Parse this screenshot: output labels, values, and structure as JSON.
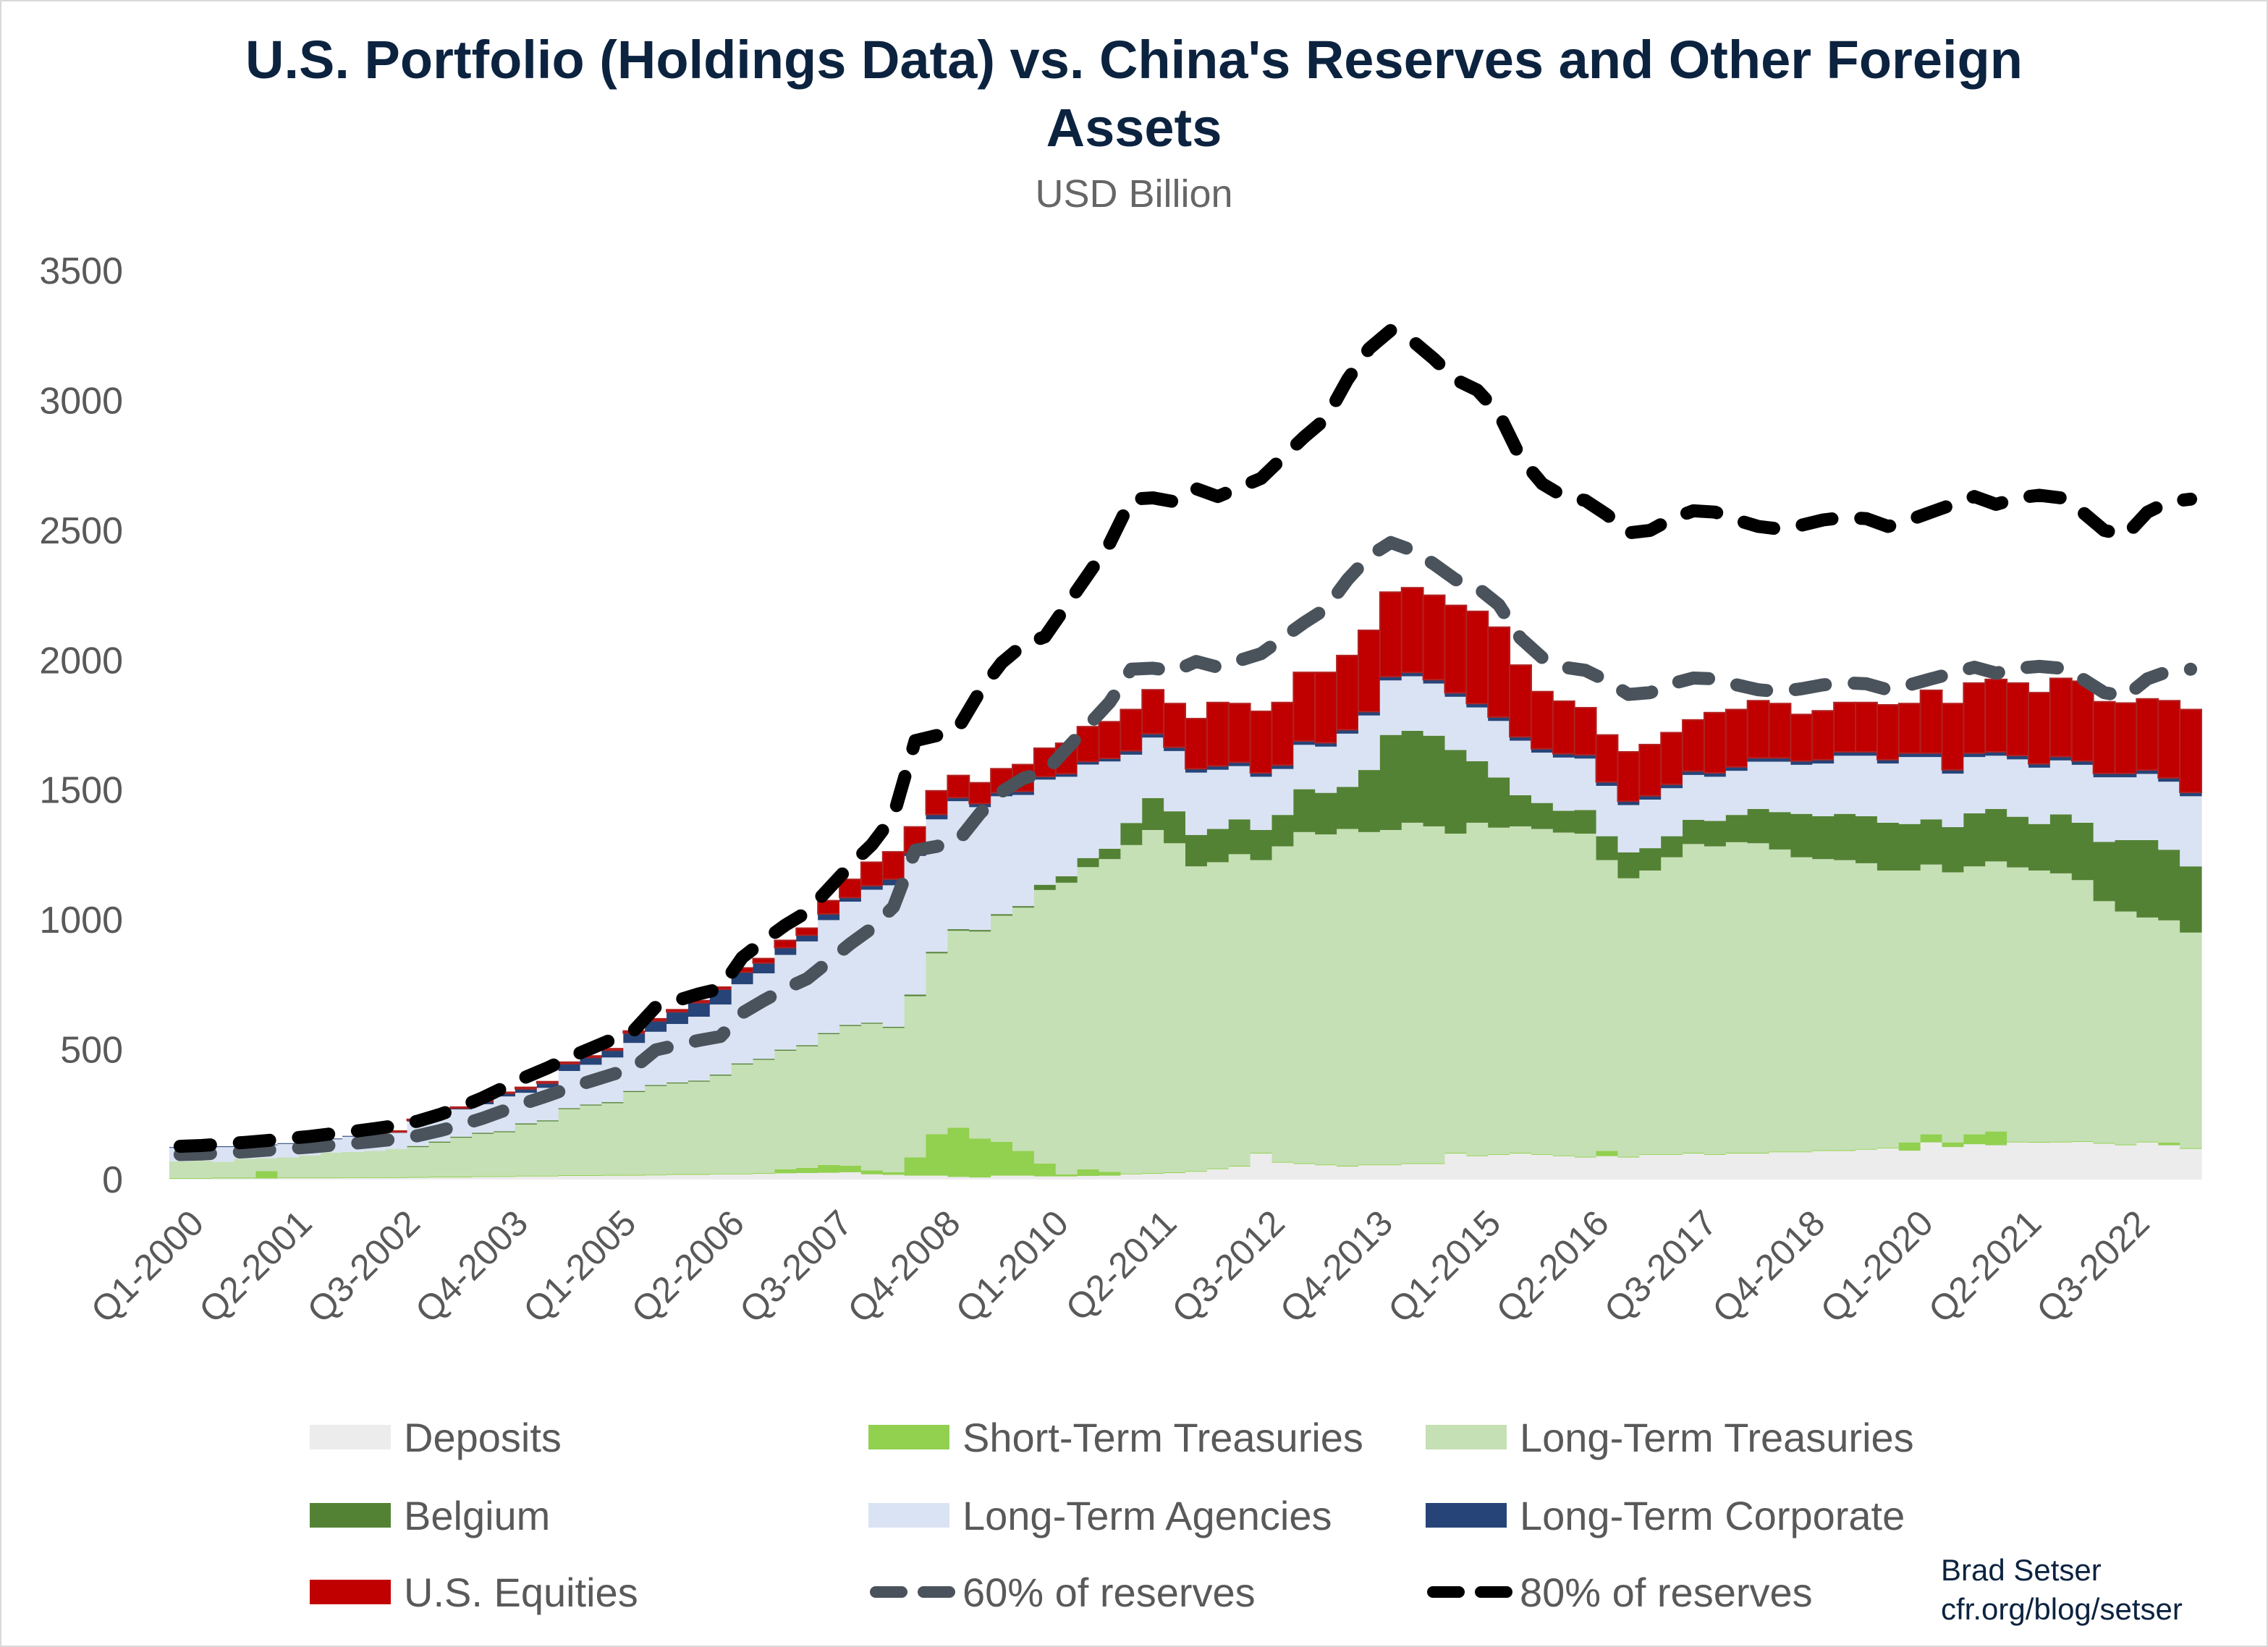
{
  "chart_data": {
    "type": "bar",
    "stacked": true,
    "title": "U.S. Portfolio (Holdings Data) vs. China's Reserves and Other Foreign Assets",
    "title_lines": [
      "U.S. Portfolio (Holdings Data) vs. China's Reserves and Other Foreign",
      "Assets"
    ],
    "subtitle": "USD Billion",
    "xlabel": "",
    "ylabel": "",
    "ylim": [
      0,
      3500
    ],
    "y_ticks": [
      "0",
      "500",
      "1000",
      "1500",
      "2000",
      "2500",
      "3000",
      "3500"
    ],
    "grid": false,
    "legend_position": "bottom",
    "x_tick_labels": [
      "Q1-2000",
      "Q2-2001",
      "Q3-2002",
      "Q4-2003",
      "Q1-2005",
      "Q2-2006",
      "Q3-2007",
      "Q4-2008",
      "Q1-2010",
      "Q2-2011",
      "Q3-2012",
      "Q4-2013",
      "Q1-2015",
      "Q2-2016",
      "Q3-2017",
      "Q4-2018",
      "Q1-2020",
      "Q2-2021",
      "Q3-2022"
    ],
    "categories": [
      "Q1-2000",
      "Q2-2000",
      "Q3-2000",
      "Q4-2000",
      "Q1-2001",
      "Q2-2001",
      "Q3-2001",
      "Q4-2001",
      "Q1-2002",
      "Q2-2002",
      "Q3-2002",
      "Q4-2002",
      "Q1-2003",
      "Q2-2003",
      "Q3-2003",
      "Q4-2003",
      "Q1-2004",
      "Q2-2004",
      "Q3-2004",
      "Q4-2004",
      "Q1-2005",
      "Q2-2005",
      "Q3-2005",
      "Q4-2005",
      "Q1-2006",
      "Q2-2006",
      "Q3-2006",
      "Q4-2006",
      "Q1-2007",
      "Q2-2007",
      "Q3-2007",
      "Q4-2007",
      "Q1-2008",
      "Q2-2008",
      "Q3-2008",
      "Q4-2008",
      "Q1-2009",
      "Q2-2009",
      "Q3-2009",
      "Q4-2009",
      "Q1-2010",
      "Q2-2010",
      "Q3-2010",
      "Q4-2010",
      "Q1-2011",
      "Q2-2011",
      "Q3-2011",
      "Q4-2011",
      "Q1-2012",
      "Q2-2012",
      "Q3-2012",
      "Q4-2012",
      "Q1-2013",
      "Q2-2013",
      "Q3-2013",
      "Q4-2013",
      "Q1-2014",
      "Q2-2014",
      "Q3-2014",
      "Q4-2014",
      "Q1-2015",
      "Q2-2015",
      "Q3-2015",
      "Q4-2015",
      "Q1-2016",
      "Q2-2016",
      "Q3-2016",
      "Q4-2016",
      "Q1-2017",
      "Q2-2017",
      "Q3-2017",
      "Q4-2017",
      "Q1-2018",
      "Q2-2018",
      "Q3-2018",
      "Q4-2018",
      "Q1-2019",
      "Q2-2019",
      "Q3-2019",
      "Q4-2019",
      "Q1-2020",
      "Q2-2020",
      "Q3-2020",
      "Q4-2020",
      "Q1-2021",
      "Q2-2021",
      "Q3-2021",
      "Q4-2021",
      "Q1-2022",
      "Q2-2022",
      "Q3-2022",
      "Q4-2022",
      "Q1-2023",
      "Q2-2023"
    ],
    "series": [
      {
        "name": "Deposits",
        "kind": "bar",
        "color": "#ececec",
        "values": [
          3,
          3,
          4,
          4,
          4,
          5,
          5,
          5,
          6,
          6,
          6,
          7,
          8,
          8,
          10,
          10,
          12,
          12,
          14,
          14,
          15,
          15,
          16,
          18,
          18,
          20,
          20,
          22,
          24,
          25,
          26,
          28,
          20,
          18,
          15,
          15,
          10,
          8,
          15,
          15,
          12,
          12,
          14,
          15,
          20,
          22,
          25,
          30,
          40,
          50,
          100,
          65,
          60,
          55,
          50,
          55,
          55,
          60,
          60,
          100,
          90,
          95,
          100,
          95,
          90,
          85,
          90,
          85,
          95,
          95,
          100,
          95,
          100,
          100,
          105,
          105,
          110,
          110,
          115,
          120,
          111,
          143,
          125,
          136,
          132,
          143,
          142,
          143,
          145,
          138,
          132,
          143,
          132,
          118
        ]
      },
      {
        "name": "Short-Term Treasuries",
        "kind": "bar",
        "color": "#92d050",
        "values": [
          3,
          3,
          3,
          3,
          28,
          3,
          3,
          3,
          3,
          3,
          3,
          3,
          3,
          3,
          3,
          3,
          3,
          3,
          3,
          3,
          3,
          3,
          3,
          3,
          3,
          3,
          3,
          3,
          15,
          20,
          30,
          25,
          15,
          10,
          70,
          160,
          190,
          150,
          130,
          95,
          50,
          8,
          25,
          15,
          3,
          3,
          3,
          3,
          3,
          3,
          3,
          3,
          3,
          3,
          3,
          3,
          3,
          3,
          3,
          3,
          3,
          3,
          3,
          3,
          3,
          3,
          20,
          3,
          3,
          3,
          3,
          3,
          3,
          3,
          3,
          3,
          3,
          3,
          3,
          3,
          32,
          31,
          18,
          38,
          53,
          3,
          3,
          3,
          3,
          3,
          3,
          3,
          10,
          3
        ]
      },
      {
        "name": "Long-Term Treasuries",
        "kind": "bar",
        "color": "#c5e0b4",
        "values": [
          64,
          66,
          61,
          73,
          50,
          77,
          85,
          96,
          97,
          101,
          109,
          115,
          131,
          150,
          163,
          169,
          197,
          209,
          254,
          268,
          276,
          319,
          341,
          349,
          356,
          377,
          420,
          436,
          457,
          468,
          504,
          538,
          565,
          556,
          621,
          696,
          758,
          797,
          871,
          937,
          1053,
          1123,
          1164,
          1204,
          1265,
          1321,
          1267,
          1173,
          1179,
          1200,
          1127,
          1215,
          1275,
          1271,
          1297,
          1280,
          1288,
          1311,
          1297,
          1229,
          1281,
          1257,
          1257,
          1252,
          1243,
          1244,
          1120,
          1072,
          1092,
          1143,
          1189,
          1185,
          1196,
          1192,
          1163,
          1133,
          1121,
          1117,
          1100,
          1067,
          1047,
          1039,
          1040,
          1032,
          1040,
          1056,
          1045,
          1033,
          1005,
          931,
          897,
          863,
          856,
          830
        ]
      },
      {
        "name": "Belgium",
        "kind": "bar",
        "color": "#548235",
        "values": [
          0,
          0,
          0,
          0,
          0,
          0,
          0,
          0,
          0,
          0,
          0,
          4,
          4,
          4,
          4,
          4,
          4,
          4,
          4,
          4,
          4,
          4,
          4,
          4,
          4,
          4,
          4,
          4,
          4,
          4,
          4,
          4,
          4,
          4,
          6,
          6,
          6,
          6,
          6,
          6,
          20,
          25,
          35,
          40,
          85,
          123,
          123,
          121,
          128,
          134,
          116,
          121,
          165,
          160,
          162,
          239,
          366,
          354,
          349,
          322,
          237,
          193,
          120,
          100,
          84,
          91,
          92,
          100,
          86,
          81,
          93,
          98,
          105,
          132,
          144,
          167,
          165,
          178,
          181,
          184,
          179,
          174,
          174,
          204,
          202,
          195,
          179,
          227,
          221,
          228,
          275,
          298,
          272,
          255
        ]
      },
      {
        "name": "Long-Term Agencies",
        "kind": "bar",
        "color": "#dae3f3",
        "values": [
          52,
          48,
          57,
          50,
          50,
          52,
          53,
          51,
          59,
          58,
          62,
          94,
          94,
          105,
          110,
          134,
          118,
          125,
          143,
          153,
          172,
          185,
          205,
          225,
          246,
          270,
          305,
          329,
          365,
          400,
          435,
          475,
          512,
          545,
          534,
          510,
          493,
          473,
          454,
          428,
          405,
          383,
          360,
          336,
          263,
          233,
          232,
          240,
          228,
          205,
          205,
          177,
          171,
          178,
          205,
          210,
          210,
          210,
          201,
          205,
          207,
          218,
          210,
          194,
          205,
          198,
          194,
          182,
          187,
          185,
          173,
          170,
          170,
          182,
          194,
          189,
          203,
          224,
          233,
          228,
          258,
          240,
          206,
          217,
          205,
          221,
          217,
          208,
          223,
          249,
          242,
          255,
          262,
          270
        ]
      },
      {
        "name": "Long-Term Corporate",
        "kind": "bar",
        "color": "#264478",
        "values": [
          3,
          3,
          3,
          3,
          3,
          3,
          3,
          3,
          3,
          3,
          3,
          5,
          5,
          5,
          10,
          12,
          15,
          18,
          28,
          28,
          28,
          38,
          42,
          47,
          54,
          59,
          47,
          40,
          28,
          24,
          24,
          16,
          16,
          24,
          12,
          19,
          14,
          14,
          14,
          14,
          12,
          12,
          12,
          12,
          15,
          15,
          15,
          15,
          15,
          15,
          15,
          15,
          15,
          15,
          15,
          15,
          15,
          15,
          15,
          15,
          15,
          15,
          15,
          15,
          15,
          15,
          15,
          15,
          15,
          15,
          15,
          15,
          15,
          15,
          15,
          15,
          15,
          15,
          15,
          15,
          15,
          15,
          15,
          15,
          15,
          15,
          15,
          15,
          15,
          15,
          15,
          15,
          15,
          15
        ]
      },
      {
        "name": "U.S. Equities",
        "kind": "bar",
        "color": "#c00000",
        "values": [
          0,
          0,
          0,
          0,
          0,
          0,
          0,
          0,
          0,
          4,
          4,
          4,
          4,
          4,
          4,
          4,
          6,
          6,
          6,
          6,
          6,
          8,
          8,
          8,
          8,
          8,
          16,
          17,
          28,
          27,
          51,
          70,
          90,
          105,
          100,
          91,
          85,
          80,
          92,
          103,
          109,
          117,
          134,
          141,
          159,
          169,
          168,
          193,
          244,
          226,
          237,
          241,
          264,
          271,
          286,
          313,
          325,
          326,
          325,
          337,
          355,
          346,
          276,
          220,
          202,
          181,
          181,
          190,
          197,
          199,
          197,
          232,
          221,
          220,
          209,
          179,
          188,
          190,
          190,
          211,
          191,
          242,
          255,
          270,
          279,
          279,
          274,
          301,
          307,
          276,
          271,
          274,
          297,
          319
        ]
      },
      {
        "name": "60% of reserves",
        "kind": "line",
        "color": "#4a535c",
        "dashed": true,
        "values": [
          96,
          98,
          103,
          107,
          113,
          119,
          125,
          132,
          139,
          147,
          156,
          169,
          188,
          210,
          236,
          266,
          296,
          323,
          353,
          379,
          405,
          431,
          499,
          518,
          536,
          551,
          641,
          690,
          735,
          773,
          840,
          908,
          968,
          1050,
          1268,
          1283,
          1305,
          1410,
          1493,
          1545,
          1568,
          1658,
          1748,
          1838,
          1965,
          1969,
          1958,
          1995,
          1973,
          1999,
          2025,
          2085,
          2145,
          2198,
          2310,
          2400,
          2453,
          2423,
          2370,
          2310,
          2280,
          2213,
          2085,
          2010,
          1973,
          1961,
          1920,
          1868,
          1875,
          1909,
          1931,
          1928,
          1905,
          1886,
          1879,
          1890,
          1905,
          1913,
          1909,
          1886,
          1905,
          1928,
          1950,
          1973,
          1950,
          1969,
          1976,
          1969,
          1928,
          1875,
          1860,
          1928,
          1958,
          1965
        ]
      },
      {
        "name": "80% of reserves",
        "kind": "line",
        "color": "#000000",
        "dashed": true,
        "values": [
          128,
          131,
          137,
          143,
          150,
          158,
          166,
          176,
          185,
          196,
          208,
          225,
          250,
          280,
          315,
          355,
          395,
          430,
          470,
          505,
          540,
          575,
          665,
          690,
          715,
          735,
          855,
          920,
          980,
          1030,
          1120,
          1210,
          1290,
          1400,
          1690,
          1710,
          1740,
          1880,
          1990,
          2060,
          2090,
          2210,
          2330,
          2450,
          2620,
          2625,
          2610,
          2660,
          2630,
          2665,
          2700,
          2780,
          2860,
          2930,
          3080,
          3200,
          3270,
          3230,
          3160,
          3080,
          3040,
          2950,
          2780,
          2680,
          2630,
          2615,
          2560,
          2490,
          2500,
          2545,
          2575,
          2570,
          2540,
          2515,
          2505,
          2520,
          2540,
          2550,
          2545,
          2515,
          2540,
          2570,
          2600,
          2630,
          2600,
          2625,
          2635,
          2625,
          2570,
          2500,
          2480,
          2570,
          2610,
          2620
        ]
      }
    ],
    "legend_order": [
      "Deposits",
      "Short-Term Treasuries",
      "Long-Term Treasuries",
      "Belgium",
      "Long-Term Agencies",
      "Long-Term Corporate",
      "U.S. Equities",
      "60% of reserves",
      "80% of reserves"
    ],
    "equities_outline_color": "#b22222"
  },
  "attribution": {
    "author": "Brad Setser",
    "url": "cfr.org/blog/setser"
  }
}
